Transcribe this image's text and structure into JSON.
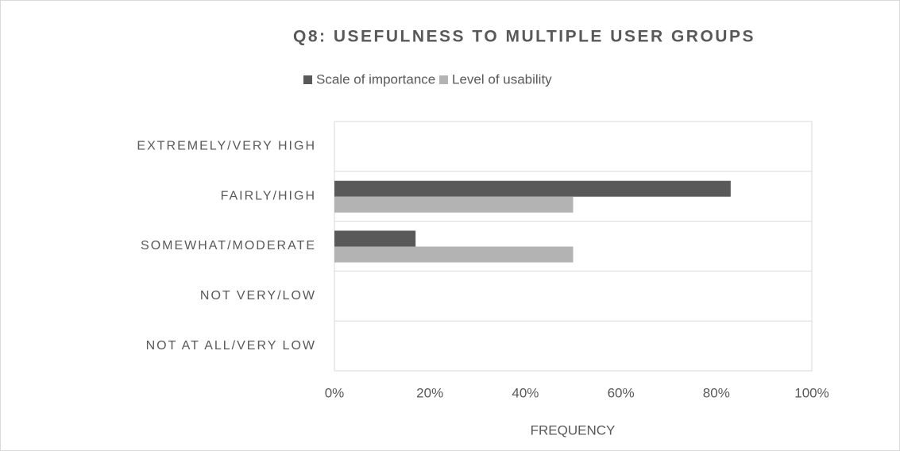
{
  "chart_data": {
    "type": "hbar",
    "title": "Q8: USEFULNESS TO MULTIPLE USER GROUPS",
    "categories": [
      "EXTREMELY/VERY HIGH",
      "FAIRLY/HIGH",
      "SOMEWHAT/MODERATE",
      "NOT VERY/LOW",
      "NOT AT ALL/VERY LOW"
    ],
    "series": [
      {
        "name": "Scale of importance",
        "color": "#595959",
        "values": [
          0,
          83,
          17,
          0,
          0
        ]
      },
      {
        "name": "Level of usability",
        "color": "#b3b3b3",
        "values": [
          0,
          50,
          50,
          0,
          0
        ]
      }
    ],
    "xlim": [
      0,
      100
    ],
    "xticks": [
      {
        "value": 0,
        "label": "0%"
      },
      {
        "value": 20,
        "label": "20%"
      },
      {
        "value": 40,
        "label": "40%"
      },
      {
        "value": 60,
        "label": "60%"
      },
      {
        "value": 80,
        "label": "80%"
      },
      {
        "value": 100,
        "label": "100%"
      }
    ],
    "xlabel": "FREQUENCY",
    "legend": "top"
  }
}
